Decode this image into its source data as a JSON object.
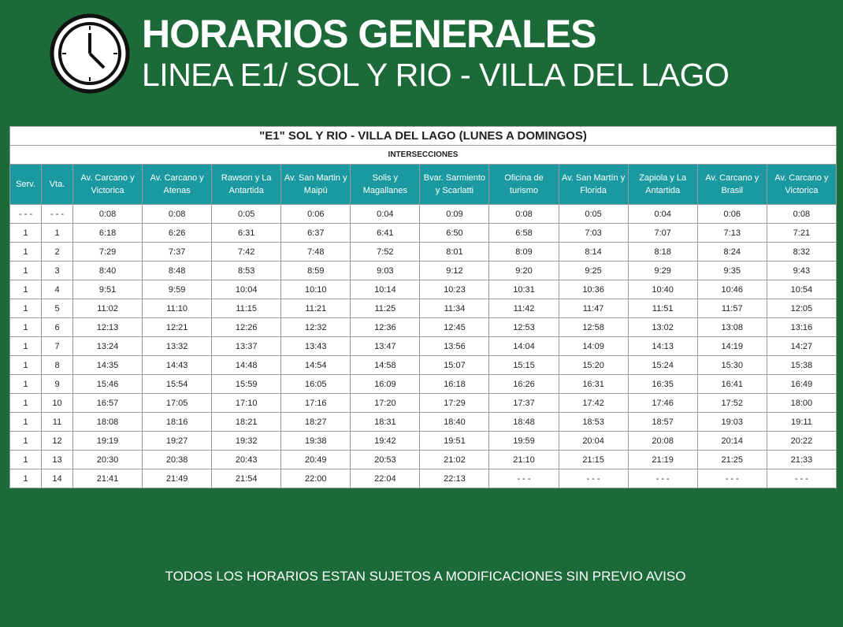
{
  "header": {
    "title": "HORARIOS GENERALES",
    "subtitle": "LINEA E1/ SOL Y RIO - VILLA DEL LAGO"
  },
  "table": {
    "title": "\"E1\" SOL Y RIO - VILLA DEL LAGO  (LUNES A DOMINGOS)",
    "group": "INTERSECCIONES",
    "columns": [
      "Serv.",
      "Vta.",
      "Av. Carcano y Victorica",
      "Av. Carcano y Atenas",
      "Rawson y La Antartida",
      "Av. San Martin y Maipú",
      "Solis y Magallanes",
      "Bvar. Sarmiento y Scarlatti",
      "Oficina de turismo",
      "Av. San Martín y Florida",
      "Zapiola y La Antartida",
      "Av. Carcano y Brasil",
      "Av. Carcano y Victorica"
    ],
    "rows": [
      [
        "- - -",
        "- - -",
        "0:08",
        "0:08",
        "0:05",
        "0:06",
        "0:04",
        "0:09",
        "0:08",
        "0:05",
        "0:04",
        "0:06",
        "0:08"
      ],
      [
        "1",
        "1",
        "6:18",
        "6:26",
        "6:31",
        "6:37",
        "6:41",
        "6:50",
        "6:58",
        "7:03",
        "7:07",
        "7:13",
        "7:21"
      ],
      [
        "1",
        "2",
        "7:29",
        "7:37",
        "7:42",
        "7:48",
        "7:52",
        "8:01",
        "8:09",
        "8:14",
        "8:18",
        "8:24",
        "8:32"
      ],
      [
        "1",
        "3",
        "8:40",
        "8:48",
        "8:53",
        "8:59",
        "9:03",
        "9:12",
        "9:20",
        "9:25",
        "9:29",
        "9:35",
        "9:43"
      ],
      [
        "1",
        "4",
        "9:51",
        "9:59",
        "10:04",
        "10:10",
        "10:14",
        "10:23",
        "10:31",
        "10:36",
        "10:40",
        "10:46",
        "10:54"
      ],
      [
        "1",
        "5",
        "11:02",
        "11:10",
        "11:15",
        "11:21",
        "11:25",
        "11:34",
        "11:42",
        "11:47",
        "11:51",
        "11:57",
        "12:05"
      ],
      [
        "1",
        "6",
        "12:13",
        "12:21",
        "12:26",
        "12:32",
        "12:36",
        "12:45",
        "12:53",
        "12:58",
        "13:02",
        "13:08",
        "13:16"
      ],
      [
        "1",
        "7",
        "13:24",
        "13:32",
        "13:37",
        "13:43",
        "13:47",
        "13:56",
        "14:04",
        "14:09",
        "14:13",
        "14:19",
        "14:27"
      ],
      [
        "1",
        "8",
        "14:35",
        "14:43",
        "14:48",
        "14:54",
        "14:58",
        "15:07",
        "15:15",
        "15:20",
        "15:24",
        "15:30",
        "15:38"
      ],
      [
        "1",
        "9",
        "15:46",
        "15:54",
        "15:59",
        "16:05",
        "16:09",
        "16:18",
        "16:26",
        "16:31",
        "16:35",
        "16:41",
        "16:49"
      ],
      [
        "1",
        "10",
        "16:57",
        "17:05",
        "17:10",
        "17:16",
        "17:20",
        "17:29",
        "17:37",
        "17:42",
        "17:46",
        "17:52",
        "18:00"
      ],
      [
        "1",
        "11",
        "18:08",
        "18:16",
        "18:21",
        "18:27",
        "18:31",
        "18:40",
        "18:48",
        "18:53",
        "18:57",
        "19:03",
        "19:11"
      ],
      [
        "1",
        "12",
        "19:19",
        "19:27",
        "19:32",
        "19:38",
        "19:42",
        "19:51",
        "19:59",
        "20:04",
        "20:08",
        "20:14",
        "20:22"
      ],
      [
        "1",
        "13",
        "20:30",
        "20:38",
        "20:43",
        "20:49",
        "20:53",
        "21:02",
        "21:10",
        "21:15",
        "21:19",
        "21:25",
        "21:33"
      ],
      [
        "1",
        "14",
        "21:41",
        "21:49",
        "21:54",
        "22:00",
        "22:04",
        "22:13",
        "- - -",
        "- - -",
        "- - -",
        "- - -",
        "- - -"
      ]
    ]
  },
  "footer": "TODOS LOS HORARIOS ESTAN SUJETOS A MODIFICACIONES SIN PREVIO AVISO"
}
